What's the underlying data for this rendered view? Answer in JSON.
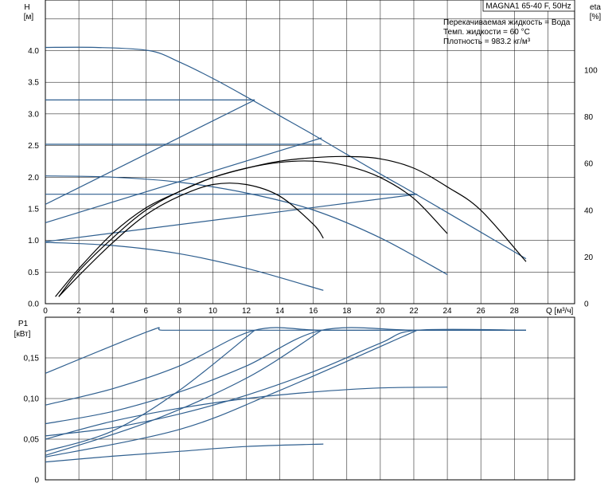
{
  "title": "MAGNA1 65-40 F, 50Hz",
  "info": {
    "line1": "Перекачиваемая жидкость = Вода",
    "line2": "Темп. жидкости = 60 °C",
    "line3": "Плотность = 983.2 кг/м³"
  },
  "colors": {
    "curve": "#2f5f8f",
    "eff": "#000000",
    "grid": "#000000",
    "axis": "#000000"
  },
  "chart_data": [
    {
      "type": "line",
      "ylabel_symbol": "H",
      "ylabel_unit": "[м]",
      "y2label_symbol": "eta",
      "y2label_unit": "[%]",
      "xlabel": "Q [м³/ч]",
      "xlim": [
        0,
        31.6
      ],
      "ylim": [
        0,
        4.8
      ],
      "y2lim": [
        0,
        130
      ],
      "xticks": [
        0,
        2,
        4,
        6,
        8,
        10,
        12,
        14,
        16,
        18,
        20,
        22,
        24,
        26,
        28
      ],
      "yticks": [
        "0.0",
        "0.5",
        "1.0",
        "1.5",
        "2.0",
        "2.5",
        "3.0",
        "3.5",
        "4.0"
      ],
      "y2ticks": [
        0,
        20,
        40,
        60,
        80,
        100
      ],
      "head_series": [
        {
          "x": [
            0,
            3,
            6.2,
            8,
            10,
            12,
            14,
            16,
            18,
            20,
            22,
            24,
            26,
            28,
            28.7
          ],
          "y": [
            4.05,
            4.05,
            4.0,
            3.82,
            3.56,
            3.27,
            2.97,
            2.67,
            2.36,
            2.05,
            1.75,
            1.44,
            1.13,
            0.82,
            0.71
          ]
        },
        {
          "x": [
            0,
            12.5
          ],
          "y": [
            3.22,
            3.22
          ]
        },
        {
          "x": [
            0,
            16.5
          ],
          "y": [
            2.52,
            2.52
          ]
        },
        {
          "x": [
            0,
            22.2
          ],
          "y": [
            1.73,
            1.73
          ]
        },
        {
          "x": [
            0,
            4,
            8,
            12,
            16,
            20,
            24
          ],
          "y": [
            2.02,
            2.0,
            1.92,
            1.75,
            1.48,
            1.04,
            0.46
          ]
        },
        {
          "x": [
            0,
            4,
            8,
            12,
            16.6
          ],
          "y": [
            0.97,
            0.92,
            0.79,
            0.56,
            0.21
          ]
        },
        {
          "x": [
            0,
            12.5
          ],
          "y": [
            1.57,
            3.22
          ]
        },
        {
          "x": [
            0,
            16.5
          ],
          "y": [
            1.28,
            2.62
          ]
        },
        {
          "x": [
            0,
            22.2
          ],
          "y": [
            0.98,
            1.73
          ]
        }
      ],
      "efficiency_series": [
        {
          "x": [
            0.6,
            2,
            4,
            6,
            8,
            10,
            12,
            14,
            16,
            18,
            20,
            22,
            24,
            26,
            28.7
          ],
          "y": [
            3,
            15,
            30,
            41,
            48,
            54,
            58,
            61,
            62.5,
            63,
            62,
            58,
            50,
            40,
            18
          ]
        },
        {
          "x": [
            0.8,
            2,
            4,
            6,
            8,
            10,
            12,
            14,
            16,
            18,
            20,
            22,
            24
          ],
          "y": [
            3,
            14,
            28,
            40,
            48,
            54,
            58,
            60.5,
            61,
            59,
            54,
            45,
            30
          ]
        },
        {
          "x": [
            0.8,
            2,
            4,
            6,
            8,
            10,
            12,
            14,
            16,
            16.6
          ],
          "y": [
            3,
            12,
            26,
            38,
            46,
            51,
            51,
            46,
            34,
            28
          ]
        }
      ]
    },
    {
      "type": "line",
      "ylabel_symbol": "P1",
      "ylabel_unit": "[кВт]",
      "xlim": [
        0,
        31.6
      ],
      "ylim": [
        0,
        0.2
      ],
      "yticks": [
        "0",
        "0,05",
        "0,10",
        "0,15"
      ],
      "power_series": [
        {
          "x": [
            0,
            6.2,
            7,
            10,
            14,
            18,
            22,
            26,
            28.7
          ],
          "y": [
            0.131,
            0.183,
            0.184,
            0.184,
            0.184,
            0.184,
            0.184,
            0.184,
            0.184
          ]
        },
        {
          "x": [
            0,
            4,
            8,
            12.5,
            16.5,
            22.2,
            28.7
          ],
          "y": [
            0.092,
            0.112,
            0.14,
            0.184,
            0.184,
            0.184,
            0.184
          ]
        },
        {
          "x": [
            0,
            4,
            8,
            12,
            16.5,
            22.2,
            28.7
          ],
          "y": [
            0.069,
            0.084,
            0.108,
            0.14,
            0.184,
            0.184,
            0.184
          ]
        },
        {
          "x": [
            0,
            4,
            8,
            12,
            16,
            20,
            22.2,
            28.7
          ],
          "y": [
            0.054,
            0.064,
            0.081,
            0.104,
            0.133,
            0.168,
            0.184,
            0.184
          ]
        },
        {
          "x": [
            0,
            4,
            8,
            12.5
          ],
          "y": [
            0.035,
            0.06,
            0.11,
            0.184
          ]
        },
        {
          "x": [
            0,
            6,
            12,
            16.5
          ],
          "y": [
            0.03,
            0.07,
            0.125,
            0.184
          ]
        },
        {
          "x": [
            0,
            8,
            14,
            22.2
          ],
          "y": [
            0.028,
            0.062,
            0.11,
            0.184
          ]
        },
        {
          "x": [
            0,
            4,
            8,
            12,
            16,
            20,
            24
          ],
          "y": [
            0.05,
            0.072,
            0.088,
            0.1,
            0.108,
            0.113,
            0.114
          ]
        },
        {
          "x": [
            0,
            4,
            8,
            12,
            16.6
          ],
          "y": [
            0.022,
            0.029,
            0.035,
            0.041,
            0.044
          ]
        }
      ]
    }
  ]
}
